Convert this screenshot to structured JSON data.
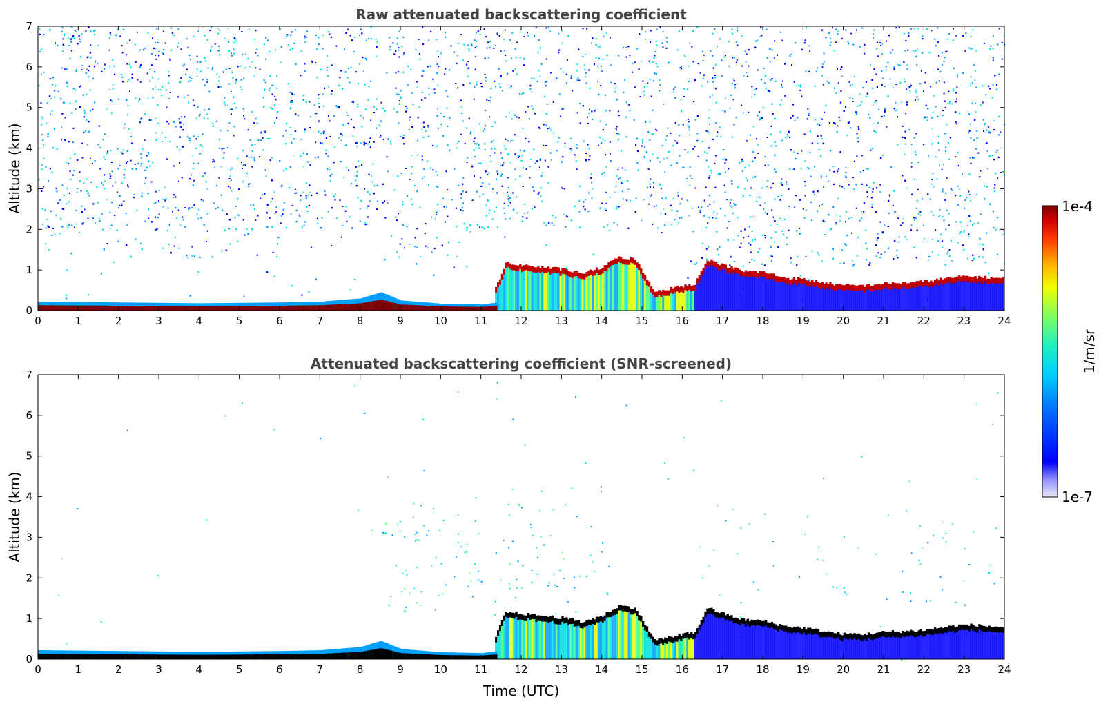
{
  "chart_data": [
    {
      "type": "heatmap",
      "title": "Raw attenuated backscattering coefficient",
      "xlabel": "",
      "ylabel": "Altitude (km)",
      "xlim": [
        0,
        24
      ],
      "ylim": [
        0,
        7
      ],
      "xticks": [
        "0",
        "1",
        "2",
        "3",
        "4",
        "5",
        "6",
        "7",
        "8",
        "9",
        "10",
        "11",
        "12",
        "13",
        "14",
        "15",
        "16",
        "17",
        "18",
        "19",
        "20",
        "21",
        "22",
        "23",
        "24"
      ],
      "yticks": [
        "0",
        "1",
        "2",
        "3",
        "4",
        "5",
        "6",
        "7"
      ],
      "cloud_layer": {
        "time": [
          11.35,
          11.6,
          12.0,
          12.5,
          13.0,
          13.5,
          14.0,
          14.4,
          14.8,
          15.3,
          16.3,
          16.6,
          17.0,
          17.5,
          18.0,
          18.5,
          19.0,
          19.5,
          20.0,
          20.5,
          21.0,
          21.5,
          22.0,
          22.5,
          23.0,
          23.5,
          24.0
        ],
        "altitude_km": [
          0.5,
          1.1,
          1.05,
          1.0,
          0.95,
          0.85,
          1.0,
          1.25,
          1.2,
          0.4,
          0.6,
          1.2,
          1.05,
          0.9,
          0.88,
          0.75,
          0.7,
          0.62,
          0.55,
          0.55,
          0.6,
          0.62,
          0.65,
          0.72,
          0.78,
          0.75,
          0.72
        ]
      },
      "surface_layer": {
        "time": [
          0,
          2,
          4,
          6,
          7,
          8,
          8.5,
          9,
          10,
          11,
          11.4
        ],
        "altitude_km": [
          0.22,
          0.2,
          0.18,
          0.2,
          0.22,
          0.3,
          0.45,
          0.25,
          0.17,
          0.15,
          0.2
        ]
      }
    },
    {
      "type": "heatmap",
      "title": "Attenuated backscattering coefficient (SNR-screened)",
      "xlabel": "Time (UTC)",
      "ylabel": "Altitude (km)",
      "xlim": [
        0,
        24
      ],
      "ylim": [
        0,
        7
      ],
      "xticks": [
        "0",
        "1",
        "2",
        "3",
        "4",
        "5",
        "6",
        "7",
        "8",
        "9",
        "10",
        "11",
        "12",
        "13",
        "14",
        "15",
        "16",
        "17",
        "18",
        "19",
        "20",
        "21",
        "22",
        "23",
        "24"
      ],
      "yticks": [
        "0",
        "1",
        "2",
        "3",
        "4",
        "5",
        "6",
        "7"
      ],
      "cloud_layer": {
        "time": [
          11.35,
          11.6,
          12.0,
          12.5,
          13.0,
          13.5,
          14.0,
          14.4,
          14.8,
          15.3,
          16.3,
          16.6,
          17.0,
          17.5,
          18.0,
          18.5,
          19.0,
          19.5,
          20.0,
          20.5,
          21.0,
          21.5,
          22.0,
          22.5,
          23.0,
          23.5,
          24.0
        ],
        "altitude_km": [
          0.5,
          1.1,
          1.05,
          1.0,
          0.95,
          0.85,
          1.0,
          1.25,
          1.2,
          0.4,
          0.6,
          1.2,
          1.05,
          0.9,
          0.88,
          0.75,
          0.7,
          0.62,
          0.55,
          0.55,
          0.6,
          0.62,
          0.65,
          0.72,
          0.78,
          0.75,
          0.72
        ]
      },
      "surface_layer": {
        "time": [
          0,
          2,
          4,
          6,
          7,
          8,
          8.5,
          9,
          10,
          11,
          11.4
        ],
        "altitude_km": [
          0.22,
          0.2,
          0.18,
          0.2,
          0.22,
          0.3,
          0.45,
          0.25,
          0.17,
          0.15,
          0.2
        ]
      }
    }
  ],
  "colorbar": {
    "max_label": "1e-4",
    "min_label": "1e-7",
    "label": "1/m/sr",
    "scale": "log",
    "colormap": "jet",
    "colors": [
      "#e8e8f8",
      "#0000ff",
      "#00a0ff",
      "#00e0e0",
      "#40ff80",
      "#e0ff00",
      "#ffc000",
      "#ff4000",
      "#c00000",
      "#800000"
    ]
  }
}
